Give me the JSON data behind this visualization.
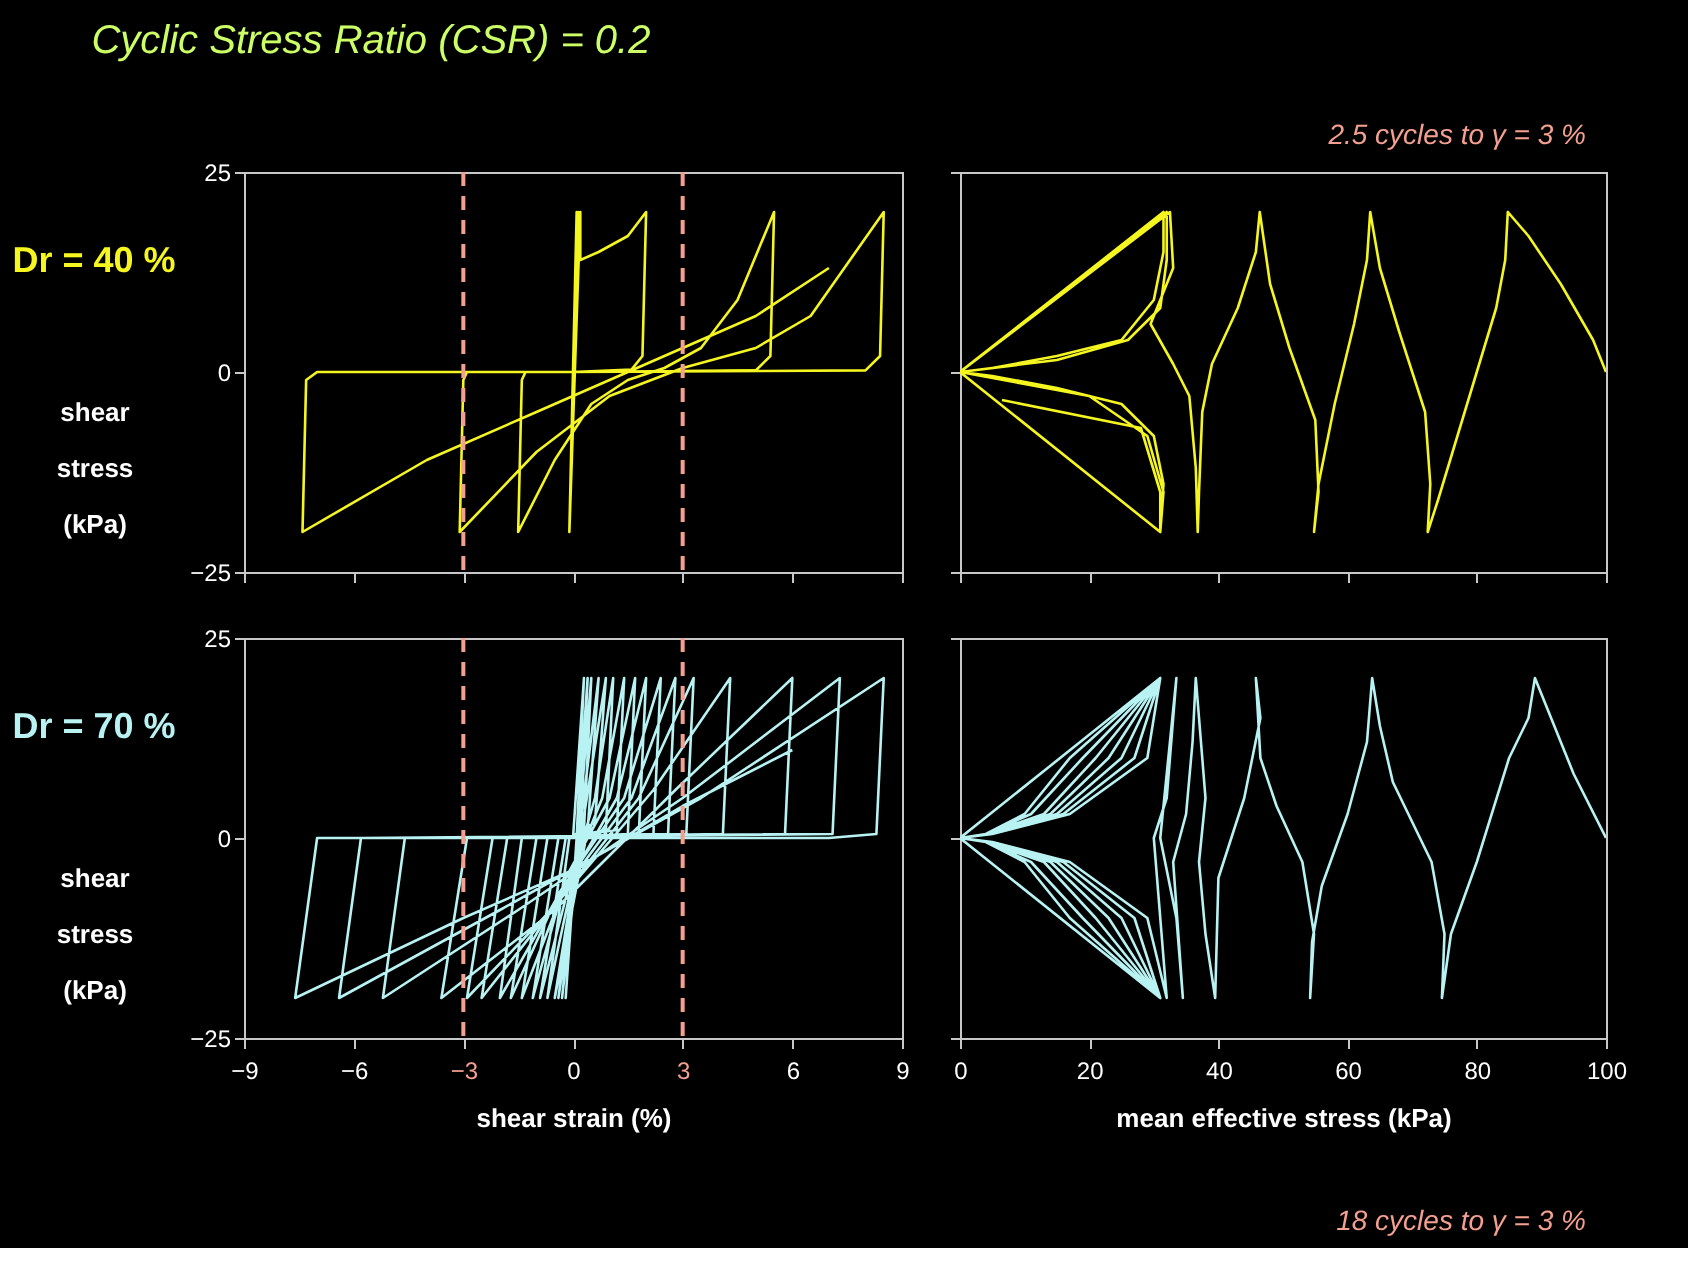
{
  "chart_data": [
    {
      "type": "line",
      "title": "Cyclic  Stress Ratio  (CSR) = 0.2",
      "ylabel": "shear stress (kPa)",
      "xlim": [
        -9,
        9
      ],
      "xticks": [
        -9,
        -6,
        -3,
        0,
        3,
        6,
        9
      ],
      "ylim": [
        -25,
        25
      ],
      "yticks": [
        -25,
        0,
        25
      ],
      "tick_labels": "y",
      "annotations": [
        "Dr = 40 %"
      ],
      "ref_lines": [
        {
          "axis": "x",
          "value": -3,
          "color": "#f4a090",
          "line_style": "dashed"
        },
        {
          "axis": "x",
          "value": 3,
          "color": "#f4a090",
          "line_style": "dashed"
        }
      ],
      "series": [
        {
          "color": "#f5f520",
          "x": [
            0,
            0.1,
            -0.1,
            0.1,
            -0.1,
            0.15,
            -0.1,
            0.2,
            0.2,
            0.7,
            1.5,
            2.0,
            1.9,
            1.6,
            0,
            -1.3,
            -1.4,
            -1.5,
            -0.5,
            0.5,
            1.5,
            2.5,
            3.5,
            4.5,
            5.5,
            5.4,
            5.0,
            0,
            -2.9,
            -3.0,
            -3.1,
            -1,
            1,
            3,
            5,
            6.5,
            8.5,
            8.4,
            8.0,
            0,
            -7.0,
            -7.3,
            -7.4,
            -4,
            -1,
            2,
            5,
            7
          ],
          "values": [
            0,
            20,
            -20,
            20,
            -20,
            20,
            -20,
            20,
            14,
            15,
            17,
            20,
            2,
            0.3,
            0,
            0,
            -1,
            -20,
            -11,
            -4,
            -1,
            0.5,
            3,
            9,
            20,
            2,
            0.2,
            0,
            0,
            -1,
            -20,
            -10,
            -3,
            0.5,
            3,
            7,
            20,
            2,
            0.2,
            0,
            0,
            -1,
            -20,
            -11,
            -5,
            1,
            7,
            13
          ]
        }
      ]
    },
    {
      "type": "line",
      "xlim": [
        0,
        100
      ],
      "xticks": [
        0,
        20,
        40,
        60,
        80,
        100
      ],
      "ylim": [
        -25,
        25
      ],
      "yticks": [
        -25,
        0,
        25
      ],
      "tick_labels": false,
      "annotations": [
        "2.5  cycles  to  γ = 3 %"
      ],
      "series": [
        {
          "color": "#f5f520",
          "x": [
            100,
            98,
            93,
            88,
            84.8,
            84.4,
            83,
            80,
            77,
            74,
            72.4,
            72.8,
            72,
            68,
            65,
            63.5,
            63,
            61,
            58,
            55.5,
            54.8,
            55.5,
            55,
            51,
            48,
            46.4,
            45.8,
            43,
            39,
            37.5,
            37,
            36.8,
            36.5,
            35.5,
            33,
            29.5,
            33,
            32.5,
            0,
            31,
            31.5,
            30,
            25,
            15,
            5,
            0,
            31.5,
            31.5,
            30,
            25,
            15,
            5,
            0,
            31,
            31.5,
            29,
            20,
            10,
            0,
            32,
            32,
            31,
            26,
            15,
            0,
            31,
            31,
            28,
            6.5
          ],
          "values": [
            0,
            4,
            11,
            17,
            20,
            14,
            8,
            0,
            -8,
            -16,
            -20,
            -14,
            -5,
            5,
            13,
            20,
            14,
            6,
            -4,
            -14,
            -20,
            -15,
            -6,
            3,
            11,
            20,
            15,
            8,
            1,
            -5,
            -15,
            -20,
            -12,
            -3,
            1,
            6,
            13,
            20,
            0,
            -20,
            -14,
            -8,
            -4,
            -2,
            -0.5,
            0,
            20,
            15,
            9,
            4,
            2,
            0.5,
            0,
            -20,
            -15,
            -8,
            -3,
            -1.5,
            0,
            20,
            14,
            8,
            4,
            1.5,
            0,
            -20,
            -15,
            -7,
            -3.5
          ]
        }
      ]
    },
    {
      "type": "line",
      "xlabel": "shear  strain (%)",
      "ylabel": "shear stress (kPa)",
      "xlim": [
        -9,
        9
      ],
      "xticks": [
        -9,
        -6,
        -3,
        0,
        3,
        6,
        9
      ],
      "ylim": [
        -25,
        25
      ],
      "yticks": [
        -25,
        0,
        25
      ],
      "annotations": [
        "Dr = 70 %"
      ],
      "ref_lines": [
        {
          "axis": "x",
          "value": -3,
          "color": "#f4a090",
          "line_style": "dashed"
        },
        {
          "axis": "x",
          "value": 3,
          "color": "#f4a090",
          "line_style": "dashed"
        }
      ],
      "series": [
        {
          "color": "#b8f2f2",
          "x": [
            0,
            0.3,
            0.1,
            -0.2,
            0.1,
            0.4,
            0.2,
            -0.3,
            0.1,
            0.5,
            0.3,
            -0.4,
            0.1,
            0.7,
            0.4,
            -0.5,
            0.1,
            0.9,
            0.6,
            -0.1,
            -0.7,
            0.1,
            0.6,
            1.1,
            0.9,
            -0.2,
            -0.9,
            0,
            0.8,
            1.4,
            1.2,
            -0.4,
            -1.1,
            -0.2,
            1.0,
            1.7,
            1.5,
            -0.7,
            -1.4,
            -0.3,
            1.2,
            2.0,
            1.8,
            -1.0,
            -1.7,
            -0.4,
            1.4,
            2.4,
            2.2,
            -1.4,
            -2.0,
            -0.5,
            1.6,
            2.8,
            2.6,
            -1.8,
            -2.5,
            -0.6,
            1.8,
            3.3,
            3.1,
            -2.2,
            -2.9,
            -0.6,
            2.2,
            4.3,
            4.1,
            -2.9,
            -3.6,
            -0.5,
            2.8,
            6.0,
            5.8,
            -4.6,
            -5.2,
            -1.5,
            3.0,
            7.3,
            7.1,
            -5.8,
            -6.4,
            -2,
            3.5,
            8.5,
            8.3,
            7.0,
            -7.0,
            -7.6,
            -3,
            0,
            3,
            6
          ],
          "values": [
            0,
            20,
            0,
            -20,
            0,
            20,
            0,
            -20,
            -2,
            20,
            1,
            -20,
            -2,
            20,
            1,
            -20,
            -3,
            20,
            2,
            0,
            -20,
            -3,
            5,
            20,
            1,
            0,
            -20,
            -4,
            5,
            20,
            1,
            0,
            -20,
            -5,
            5,
            20,
            0.5,
            0,
            -20,
            -7,
            5,
            20,
            0.5,
            0,
            -20,
            -7,
            5,
            20,
            0.5,
            0,
            -20,
            -8,
            5,
            20,
            0.5,
            0,
            -20,
            -9,
            5,
            20,
            0.5,
            0,
            -20,
            -9,
            6,
            20,
            0.5,
            0,
            -20,
            -9,
            6,
            20,
            0.5,
            0,
            -20,
            -9,
            5,
            20,
            0.5,
            0,
            -20,
            -9,
            5,
            20,
            0.5,
            0,
            0,
            -20,
            -10,
            -4,
            4,
            11
          ]
        }
      ]
    },
    {
      "type": "line",
      "xlabel": "mean effective stress  (kPa)",
      "xlim": [
        0,
        100
      ],
      "xticks": [
        0,
        20,
        40,
        60,
        80,
        100
      ],
      "ylim": [
        -25,
        25
      ],
      "yticks": [
        -25,
        0,
        25
      ],
      "tick_labels": "x",
      "annotations": [
        "18  cycles  to  γ = 3 %"
      ],
      "series": [
        {
          "color": "#b8f2f2",
          "x": [
            100,
            95,
            91,
            89,
            88,
            85,
            80,
            76,
            74.6,
            75,
            73,
            67,
            65,
            63.8,
            63,
            60,
            56,
            54.5,
            54.2,
            54.8,
            53,
            49,
            46.5,
            45.8,
            46.5,
            44,
            42,
            40,
            39.5,
            38,
            37,
            38,
            36.5,
            36,
            35,
            33,
            34.5,
            33.5,
            31,
            33.5,
            32,
            30,
            32,
            29,
            17,
            5,
            0,
            31,
            29,
            17,
            5,
            0,
            31,
            27,
            16,
            5,
            0,
            31,
            27,
            16,
            5,
            0,
            31,
            25,
            15,
            5,
            0,
            31,
            25,
            15,
            5,
            0,
            31,
            23,
            14,
            5,
            0,
            31,
            23,
            14,
            5,
            0,
            31,
            21,
            13,
            4,
            0,
            31,
            21,
            13,
            4,
            0,
            31,
            19,
            11,
            4,
            0,
            31,
            19,
            11,
            4,
            0,
            31,
            17,
            10,
            4,
            0,
            31,
            17,
            10,
            4,
            0,
            31
          ],
          "values": [
            0,
            8,
            16,
            20,
            15,
            10,
            -3,
            -12,
            -20,
            -12,
            -3,
            7,
            14,
            20,
            12,
            3,
            -6,
            -13,
            -20,
            -12,
            -3,
            4,
            10,
            20,
            15,
            5,
            0,
            -5,
            -20,
            -12,
            -3,
            5,
            20,
            12,
            3,
            -3,
            -20,
            -10,
            0,
            20,
            5,
            0,
            -20,
            -10,
            -3,
            -0.5,
            0,
            20,
            10,
            3,
            0.5,
            0,
            -20,
            -10,
            -3,
            -0.5,
            0,
            20,
            10,
            3,
            0.5,
            0,
            -20,
            -10,
            -3,
            -0.5,
            0,
            20,
            10,
            3,
            0.5,
            0,
            -20,
            -10,
            -3,
            -0.5,
            0,
            20,
            10,
            3,
            0.5,
            0,
            -20,
            -10,
            -3,
            -0.5,
            0,
            20,
            10,
            3,
            0.5,
            0,
            -20,
            -10,
            -3,
            -0.5,
            0,
            20,
            10,
            3,
            0.5,
            0,
            -20,
            -10,
            -3,
            -0.5,
            0,
            20,
            10,
            3,
            0.5,
            0,
            -20
          ]
        }
      ]
    }
  ]
}
